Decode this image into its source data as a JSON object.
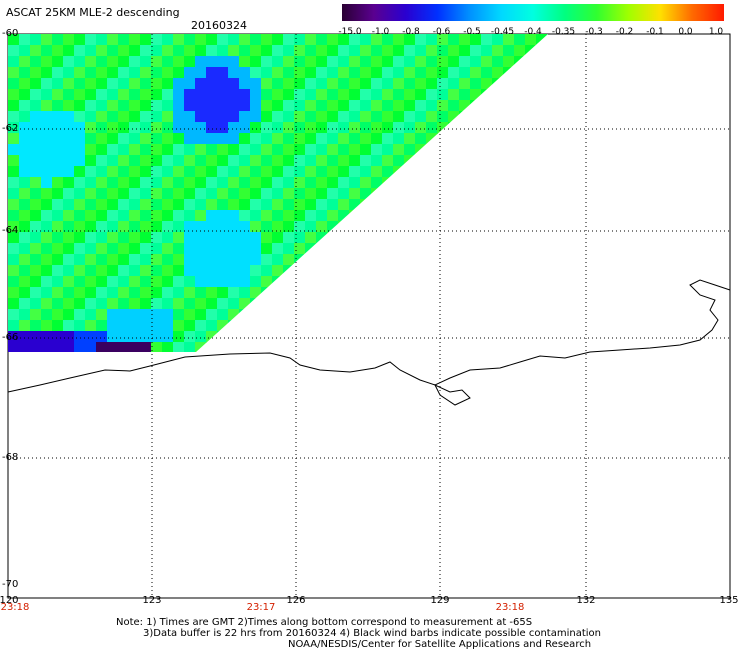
{
  "header": {
    "title": "ASCAT 25KM MLE-2 descending",
    "date": "20160324"
  },
  "colorbar": {
    "labels": [
      "-15.0",
      "-1.0",
      "-0.8",
      "-0.6",
      "-0.5",
      "-0.45",
      "-0.4",
      "-0.35",
      "-0.3",
      "-0.2",
      "-0.1",
      "0.0",
      "1.0"
    ],
    "colors": [
      "#2a0033",
      "#5a0090",
      "#2a00d0",
      "#0030ff",
      "#0090ff",
      "#00d8ff",
      "#00ffe0",
      "#00ff80",
      "#30ff30",
      "#a0ff00",
      "#ffe000",
      "#ff6a00",
      "#ff1a00"
    ]
  },
  "map": {
    "y_labels": [
      "-60",
      "-62",
      "-64",
      "-66",
      "-68",
      "-70"
    ],
    "x_labels": [
      "120",
      "123",
      "126",
      "129",
      "132",
      "135"
    ],
    "time_labels": [
      "23:18",
      "23:17",
      "23:18"
    ]
  },
  "notes": {
    "line1": "Note: 1) Times are GMT 2)Times along bottom correspond to measurement at -65S",
    "line2": "3)Data buffer is 22 hrs from 20160324 4) Black wind barbs indicate possible contamination",
    "line3": "NOAA/NESDIS/Center for Satellite Applications and Research"
  }
}
